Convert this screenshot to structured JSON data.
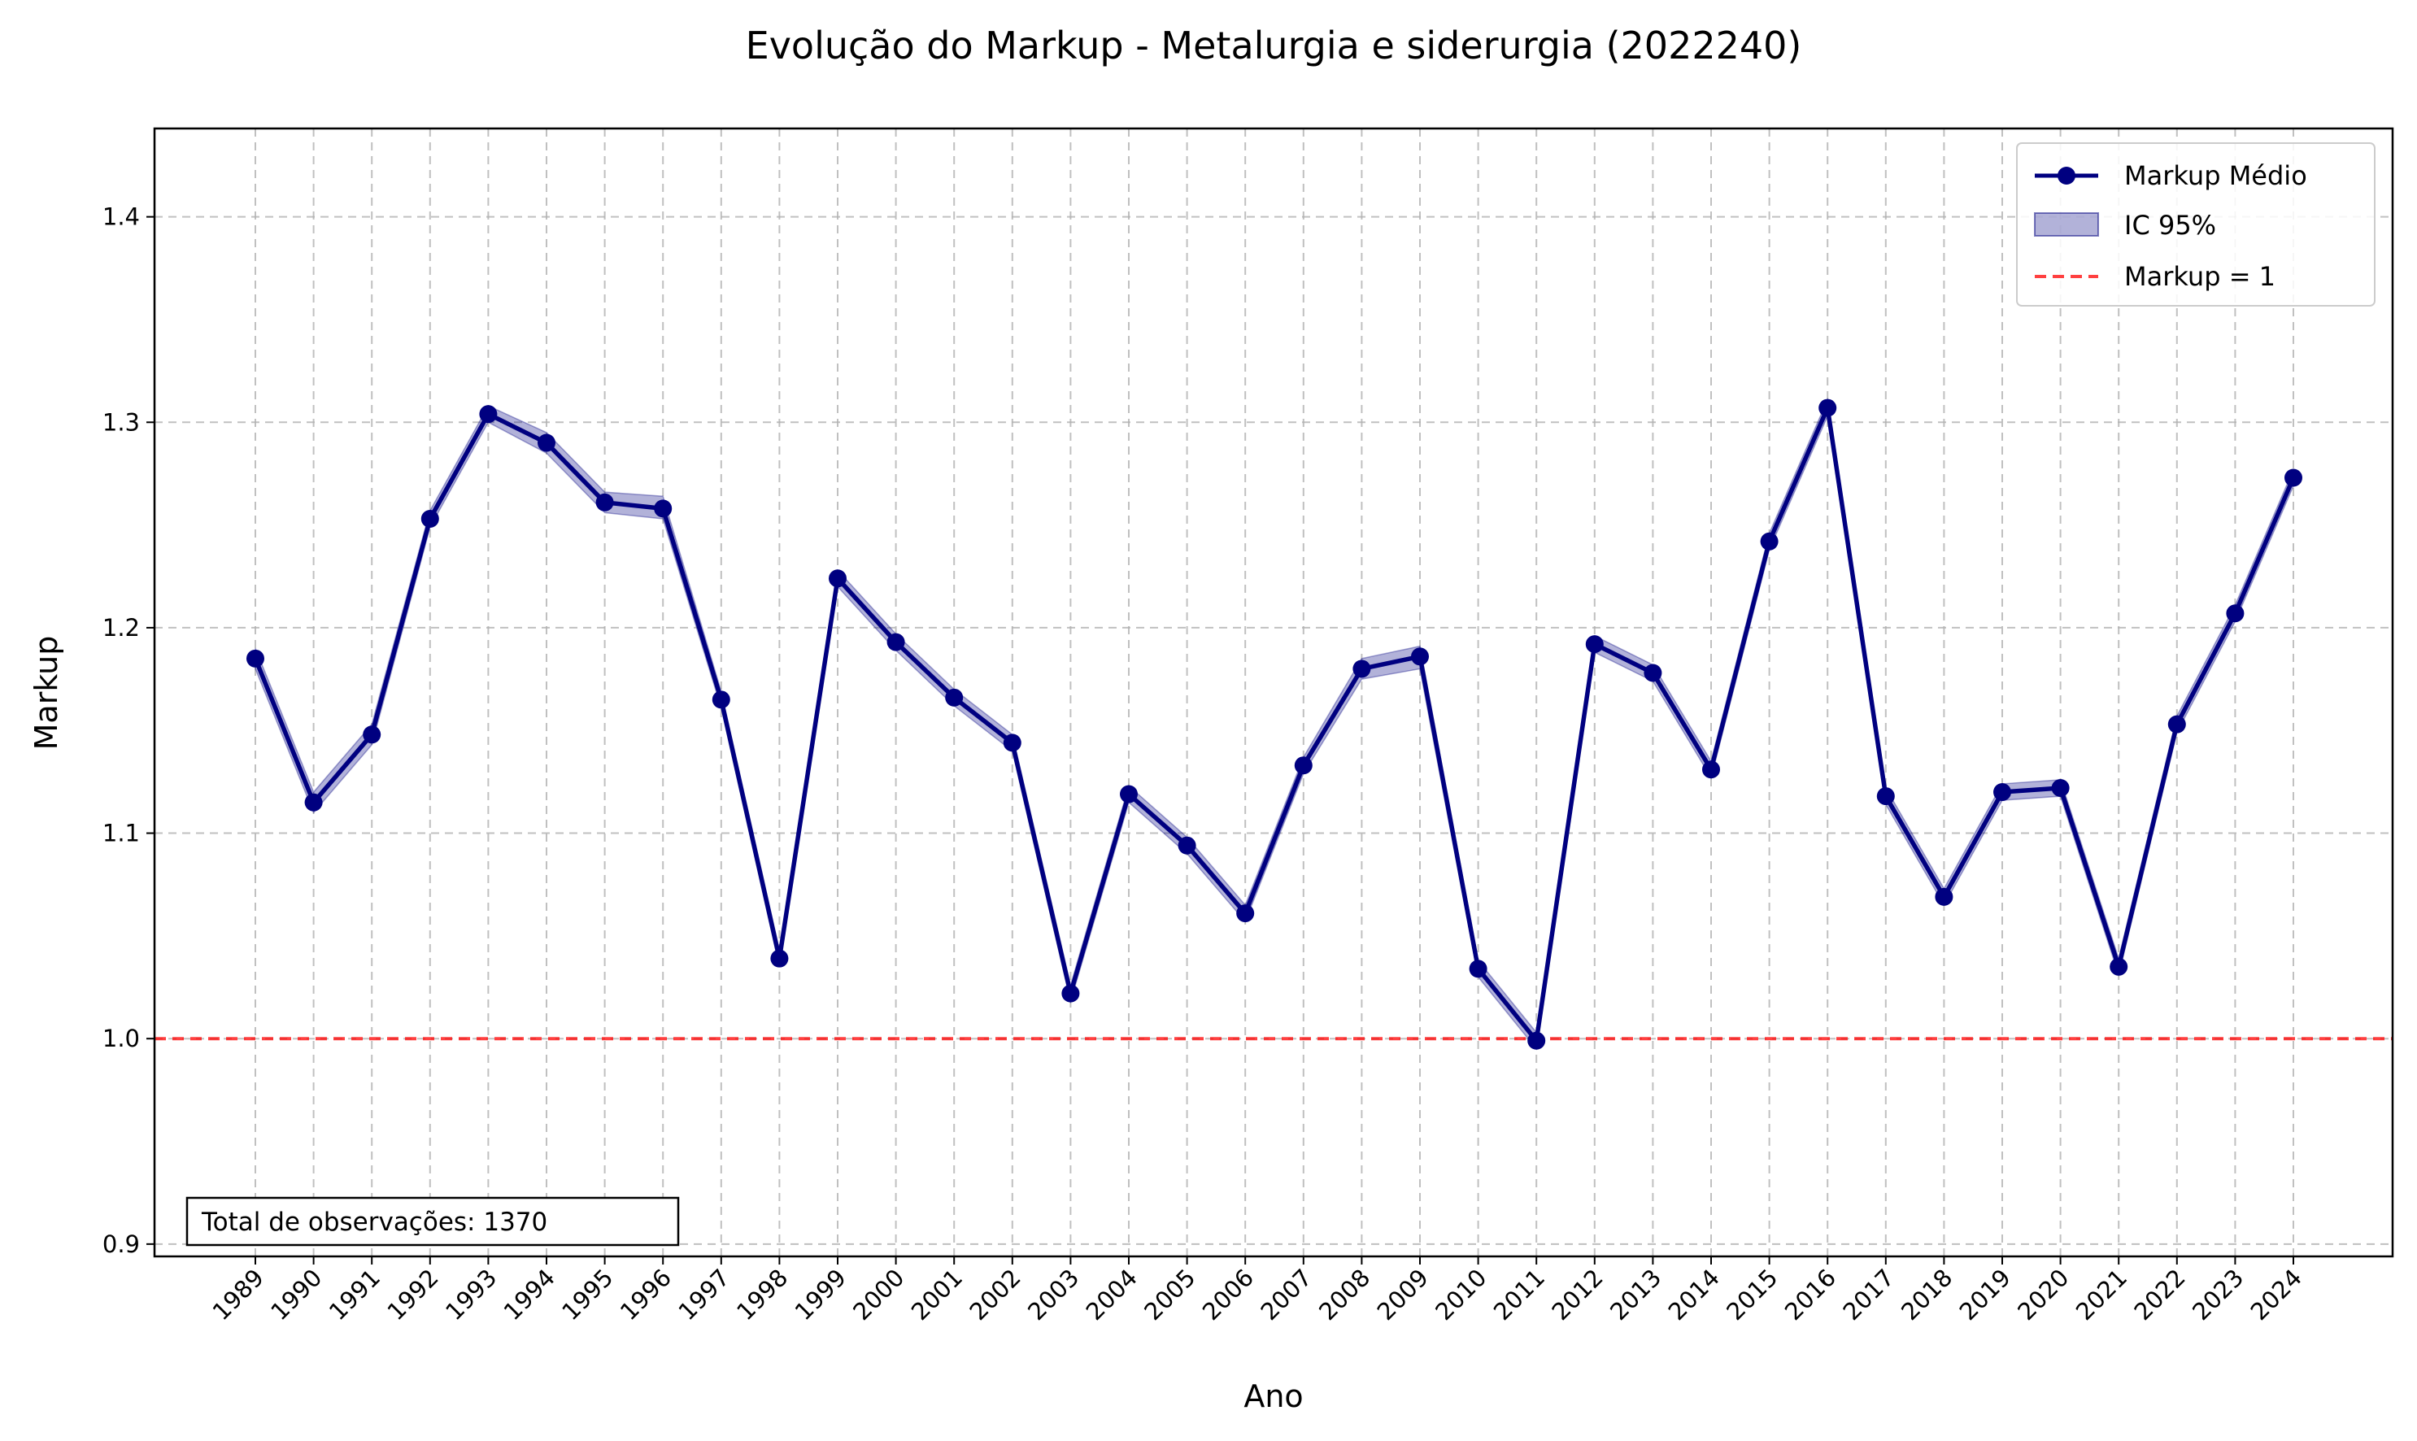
{
  "chart_data": {
    "type": "line",
    "title": "Evolução do Markup - Metalurgia e siderurgia (2022240)",
    "xlabel": "Ano",
    "ylabel": "Markup",
    "ylim": [
      0.894,
      1.443
    ],
    "yticks": [
      "0.9",
      "1.0",
      "1.1",
      "1.2",
      "1.3",
      "1.4"
    ],
    "grid": true,
    "legend_position": "top-right",
    "x": [
      "1989",
      "1990",
      "1991",
      "1992",
      "1993",
      "1994",
      "1995",
      "1996",
      "1997",
      "1998",
      "1999",
      "2000",
      "2001",
      "2002",
      "2003",
      "2004",
      "2005",
      "2006",
      "2007",
      "2008",
      "2009",
      "2010",
      "2011",
      "2012",
      "2013",
      "2014",
      "2015",
      "2016",
      "2017",
      "2018",
      "2019",
      "2020",
      "2021",
      "2022",
      "2023",
      "2024"
    ],
    "series": [
      {
        "name": "Markup Médio",
        "color": "#000080",
        "values": [
          1.185,
          1.115,
          1.148,
          1.253,
          1.304,
          1.29,
          1.261,
          1.258,
          1.165,
          1.039,
          1.224,
          1.193,
          1.166,
          1.144,
          1.022,
          1.119,
          1.094,
          1.061,
          1.133,
          1.18,
          1.186,
          1.034,
          0.999,
          1.192,
          1.178,
          1.131,
          1.242,
          1.307,
          1.118,
          1.069,
          1.12,
          1.122,
          1.035,
          1.153,
          1.207,
          1.273
        ],
        "ci_lower": [
          1.18,
          1.11,
          1.143,
          1.249,
          1.3,
          1.285,
          1.256,
          1.253,
          1.161,
          1.035,
          1.22,
          1.189,
          1.162,
          1.14,
          1.018,
          1.115,
          1.09,
          1.057,
          1.129,
          1.175,
          1.18,
          1.03,
          0.995,
          1.188,
          1.174,
          1.127,
          1.238,
          1.303,
          1.114,
          1.065,
          1.116,
          1.118,
          1.031,
          1.149,
          1.203,
          1.269
        ],
        "ci_upper": [
          1.19,
          1.12,
          1.153,
          1.257,
          1.308,
          1.295,
          1.266,
          1.264,
          1.169,
          1.043,
          1.228,
          1.197,
          1.17,
          1.148,
          1.026,
          1.123,
          1.098,
          1.065,
          1.137,
          1.185,
          1.191,
          1.038,
          1.003,
          1.196,
          1.182,
          1.135,
          1.246,
          1.311,
          1.122,
          1.073,
          1.124,
          1.126,
          1.039,
          1.157,
          1.211,
          1.277
        ]
      }
    ],
    "reference_line": {
      "value": 1.0,
      "label": "Markup = 1",
      "color": "#ff0000"
    },
    "ci_label": "IC 95%",
    "ci_color": "#000080",
    "annotation": "Total de observações: 1370"
  }
}
